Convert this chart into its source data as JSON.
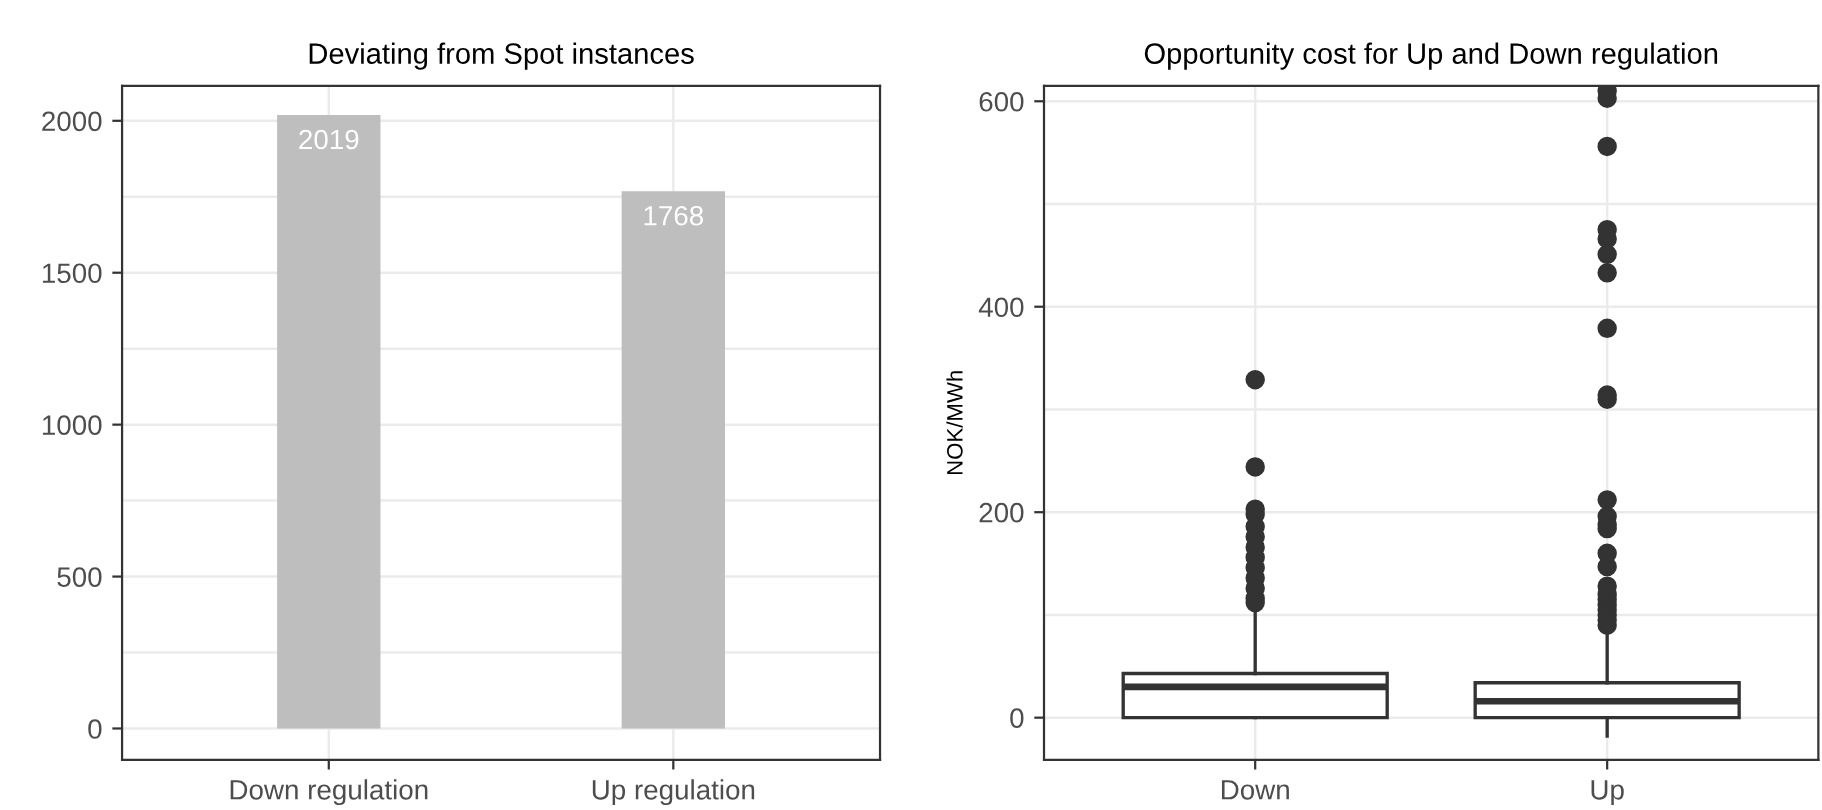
{
  "chart_data": [
    {
      "type": "bar",
      "title": "Deviating from Spot instances",
      "categories": [
        "Down regulation",
        "Up regulation"
      ],
      "values": [
        2019,
        1768
      ],
      "color": "#bebebe",
      "ylim": [
        -103,
        2115
      ],
      "yticks": [
        0,
        500,
        1000,
        1500,
        2000
      ],
      "grid": true,
      "data_labels": true
    },
    {
      "type": "box",
      "title": "Opportunity cost for Up and Down regulation",
      "ylabel": "NOK/MWh",
      "categories": [
        "Down",
        "Up"
      ],
      "color": "#333333",
      "ylim": [
        -41,
        615
      ],
      "yticks": [
        0,
        200,
        400,
        600
      ],
      "grid": true,
      "boxes": [
        {
          "low": 0,
          "q1": 0,
          "median": 30,
          "q3": 43,
          "high": 108,
          "outliers": [
            329,
            244,
            203,
            198,
            186,
            176,
            166,
            156,
            146,
            136,
            126,
            116,
            112
          ]
        },
        {
          "low": -18,
          "q1": 0,
          "median": 16,
          "q3": 34,
          "high": 83,
          "outliers": [
            610,
            603,
            556,
            475,
            466,
            451,
            433,
            379,
            314,
            310,
            212,
            196,
            188,
            184,
            160,
            147,
            128,
            120,
            115,
            110,
            105,
            100,
            95,
            90
          ]
        }
      ]
    }
  ]
}
